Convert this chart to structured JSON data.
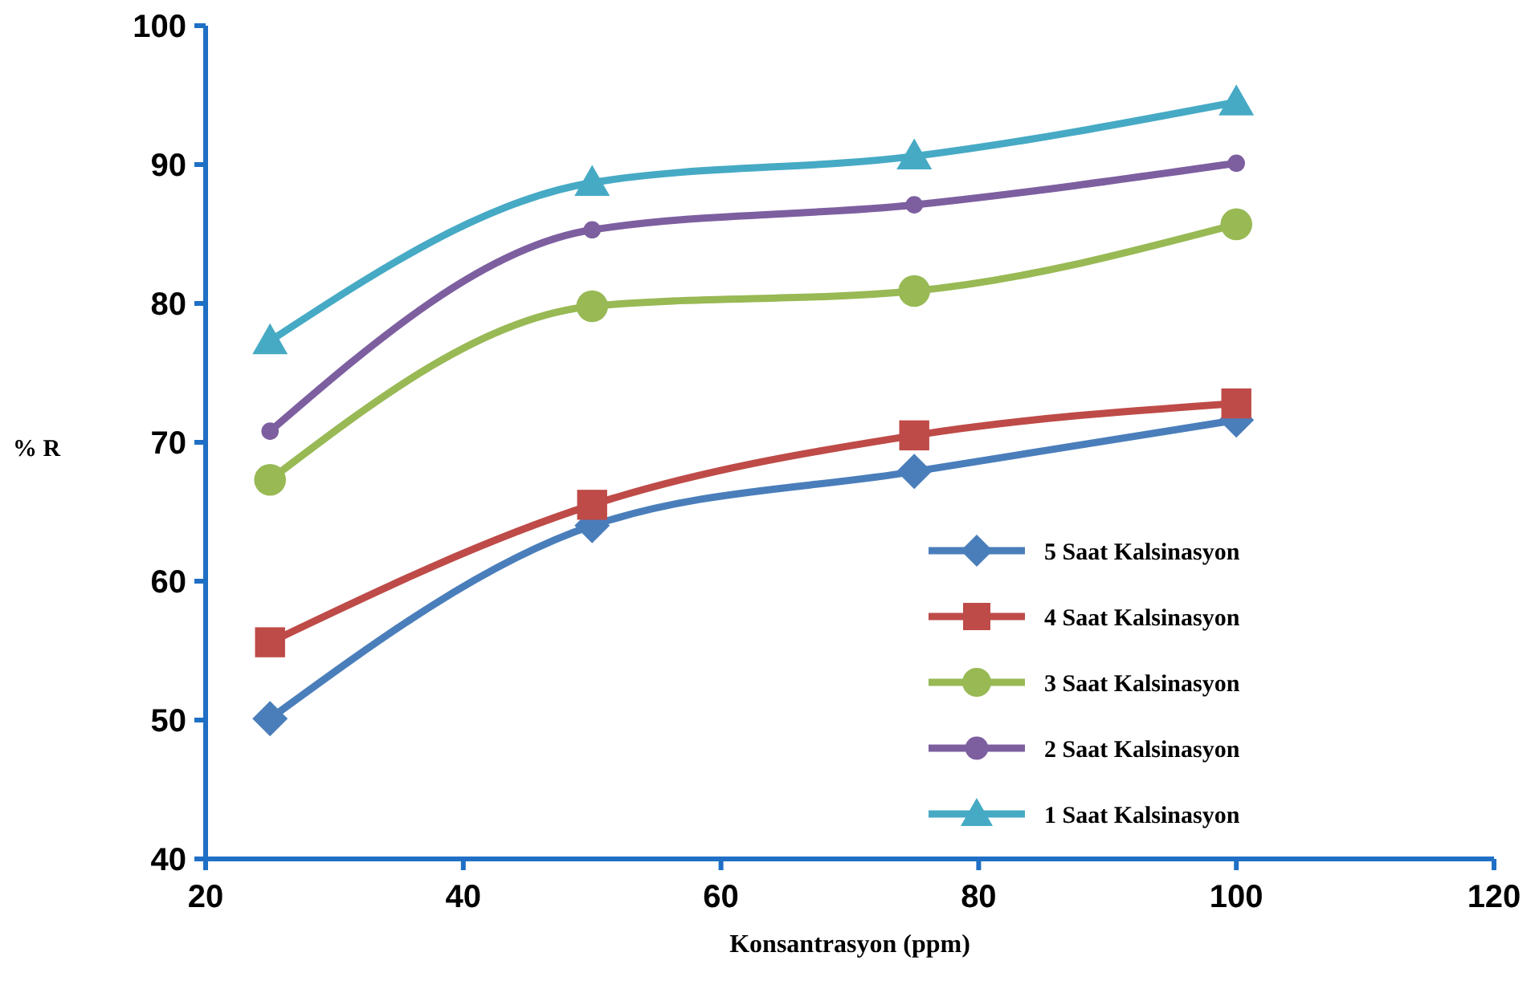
{
  "chart_data": {
    "type": "line",
    "xlabel": "Konsantrasyon (ppm)",
    "ylabel": "% R",
    "x": [
      25,
      50,
      75,
      100
    ],
    "xlim": [
      20,
      120
    ],
    "xticks": [
      20,
      40,
      60,
      80,
      100,
      120
    ],
    "ylim": [
      40,
      100
    ],
    "yticks": [
      40,
      50,
      60,
      70,
      80,
      90,
      100
    ],
    "grid": false,
    "legend": "bottom right",
    "series": [
      {
        "name": "5 Saat Kalsinasyon",
        "color": "#4a7ebb",
        "marker": "diamond",
        "values": [
          50.1,
          64.0,
          67.9,
          71.6
        ]
      },
      {
        "name": "4 Saat Kalsinasyon",
        "color": "#be4b48",
        "marker": "square",
        "values": [
          55.6,
          65.5,
          70.5,
          72.8
        ]
      },
      {
        "name": "3 Saat Kalsinasyon",
        "color": "#98b954",
        "marker": "circle",
        "values": [
          67.3,
          79.8,
          80.9,
          85.7
        ]
      },
      {
        "name": "2 Saat Kalsinasyon",
        "color": "#7d5fa0",
        "marker": "circle",
        "values": [
          70.8,
          85.3,
          87.1,
          90.1
        ]
      },
      {
        "name": "1 Saat Kalsinasyon",
        "color": "#46aac5",
        "marker": "triangle",
        "values": [
          77.3,
          88.7,
          90.6,
          94.5
        ]
      }
    ]
  }
}
